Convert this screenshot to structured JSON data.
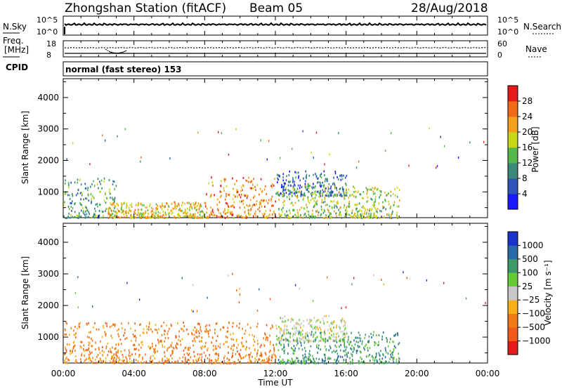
{
  "header": {
    "station": "Zhongshan Station (fitACF)",
    "beam": "Beam 05",
    "date": "28/Aug/2018"
  },
  "summary": {
    "nsky_label": "N.Sky",
    "nsky_ticks": [
      "10^5",
      "10^0"
    ],
    "nsearch_label": "N.Search",
    "nsearch_ticks": [
      "10^5",
      "10^0"
    ],
    "freq_label_1": "Freq.",
    "freq_label_2": "[MHz]",
    "freq_ticks": [
      "18",
      "8"
    ],
    "nave_label": "Nave",
    "nave_ticks": [
      "60",
      "0"
    ],
    "cpid_label": "CPID",
    "cpid_text": "normal (fast stereo) 153"
  },
  "x_axis": {
    "label": "Time UT",
    "ticks": [
      "00:00",
      "04:00",
      "08:00",
      "12:00",
      "16:00",
      "20:00",
      "00:00"
    ]
  },
  "panels": {
    "power_ylabel": "Slant Range [km]",
    "velocity_ylabel": "Slant Range [km]",
    "y_ticks": [
      "1000",
      "2000",
      "3000",
      "4000"
    ]
  },
  "colorbars": {
    "power": {
      "label": "Power [dB]",
      "ticks": [
        "4",
        "8",
        "12",
        "16",
        "20",
        "24",
        "28"
      ],
      "colors": [
        "#1a1aff",
        "#2f55b8",
        "#3a8a7a",
        "#55b84a",
        "#c8d61a",
        "#f5a01a",
        "#f06a1a",
        "#e61a1a"
      ]
    },
    "velocity": {
      "label": "Velocity [m s⁻¹]",
      "ticks": [
        "1000",
        "500",
        "100",
        "25",
        "−25",
        "−100",
        "−500",
        "−1000"
      ],
      "colors": [
        "#1a33cc",
        "#2a6aa8",
        "#3f9a6a",
        "#66cc33",
        "#c8c8c8",
        "#f5b01a",
        "#f07a1a",
        "#f05a1a",
        "#e61a1a"
      ]
    }
  },
  "chart_data": [
    {
      "type": "heatmap",
      "title": "Power",
      "xlabel": "Time UT",
      "ylabel": "Slant Range [km]",
      "xlim": [
        "00:00",
        "24:00"
      ],
      "ylim": [
        180,
        4600
      ],
      "colorbar_label": "Power [dB]",
      "colorbar_ticks": [
        4,
        8,
        12,
        16,
        20,
        24,
        28
      ],
      "scatter_regions": [
        {
          "t_start": 0.0,
          "t_end": 3.0,
          "r_start": 200,
          "r_end": 1500,
          "value": 10
        },
        {
          "t_start": 2.5,
          "t_end": 8.0,
          "r_start": 200,
          "r_end": 700,
          "value": 18
        },
        {
          "t_start": 8.0,
          "t_end": 12.0,
          "r_start": 200,
          "r_end": 1500,
          "value": 22
        },
        {
          "t_start": 12.0,
          "t_end": 16.0,
          "r_start": 900,
          "r_end": 1700,
          "value": 6
        },
        {
          "t_start": 12.0,
          "t_end": 19.0,
          "r_start": 200,
          "r_end": 1200,
          "value": 14
        }
      ]
    },
    {
      "type": "heatmap",
      "title": "Velocity",
      "xlabel": "Time UT",
      "ylabel": "Slant Range [km]",
      "xlim": [
        "00:00",
        "24:00"
      ],
      "ylim": [
        180,
        4600
      ],
      "colorbar_label": "Velocity [m s⁻¹]",
      "colorbar_ticks": [
        1000,
        500,
        100,
        25,
        -25,
        -100,
        -500,
        -1000
      ],
      "scatter_regions": [
        {
          "t_start": 0.0,
          "t_end": 8.0,
          "r_start": 200,
          "r_end": 1500,
          "value": -150
        },
        {
          "t_start": 8.0,
          "t_end": 12.0,
          "r_start": 200,
          "r_end": 1500,
          "value": -200
        },
        {
          "t_start": 12.0,
          "t_end": 16.0,
          "r_start": 900,
          "r_end": 1700,
          "value": 0
        },
        {
          "t_start": 12.0,
          "t_end": 19.0,
          "r_start": 200,
          "r_end": 1200,
          "value": 200
        }
      ]
    }
  ]
}
